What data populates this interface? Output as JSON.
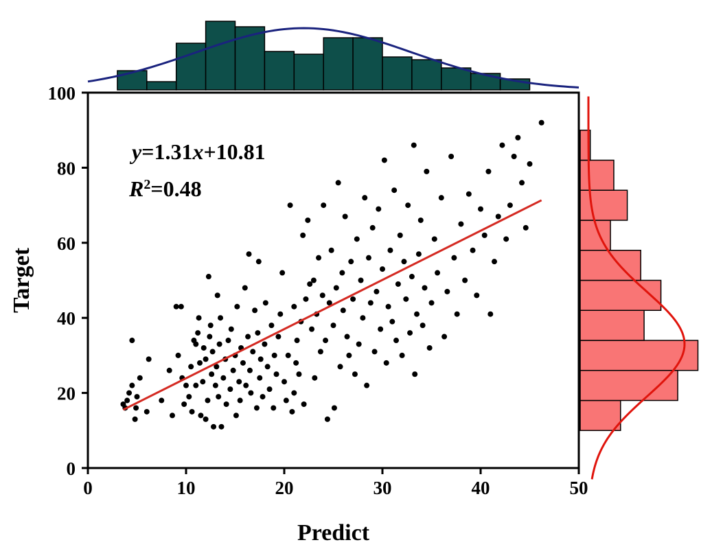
{
  "chart_data": {
    "type": "scatter",
    "xlabel": "Predict",
    "ylabel": "Target",
    "xlim": [
      0,
      50
    ],
    "ylim": [
      0,
      100
    ],
    "x_ticks": [
      "0",
      "10",
      "20",
      "30",
      "40",
      "50"
    ],
    "y_ticks": [
      "0",
      "20",
      "40",
      "60",
      "80",
      "100"
    ],
    "grid": false,
    "annotations": {
      "equation": {
        "prefix": "y",
        "eq": "=1.31",
        "var": "x",
        "suffix": "+10.81"
      },
      "r2": {
        "base": "R",
        "sup": "2",
        "value": "=0.48"
      }
    },
    "fit_line": {
      "slope": 1.31,
      "intercept": 10.81,
      "x_range": [
        3.6,
        46.2
      ]
    },
    "points": [
      [
        3.6,
        17
      ],
      [
        3.8,
        16
      ],
      [
        4.0,
        18
      ],
      [
        4.2,
        20
      ],
      [
        4.5,
        22
      ],
      [
        4.5,
        34
      ],
      [
        4.8,
        13
      ],
      [
        4.9,
        16
      ],
      [
        5.0,
        19
      ],
      [
        5.3,
        24
      ],
      [
        6.0,
        15
      ],
      [
        6.2,
        29
      ],
      [
        7.5,
        18
      ],
      [
        8.3,
        26
      ],
      [
        8.6,
        14
      ],
      [
        9.0,
        43
      ],
      [
        9.2,
        30
      ],
      [
        9.5,
        43
      ],
      [
        9.6,
        24
      ],
      [
        9.8,
        17
      ],
      [
        10.0,
        22
      ],
      [
        10.3,
        19
      ],
      [
        10.5,
        27
      ],
      [
        10.6,
        15
      ],
      [
        10.8,
        34
      ],
      [
        11.0,
        33
      ],
      [
        11.0,
        22
      ],
      [
        11.2,
        36
      ],
      [
        11.3,
        40
      ],
      [
        11.4,
        28
      ],
      [
        11.5,
        14
      ],
      [
        11.7,
        23
      ],
      [
        11.8,
        32
      ],
      [
        12.0,
        29
      ],
      [
        12.0,
        13
      ],
      [
        12.2,
        18
      ],
      [
        12.3,
        51
      ],
      [
        12.4,
        35
      ],
      [
        12.5,
        38
      ],
      [
        12.6,
        25
      ],
      [
        12.7,
        31
      ],
      [
        12.8,
        11
      ],
      [
        13.0,
        22
      ],
      [
        13.1,
        27
      ],
      [
        13.2,
        46
      ],
      [
        13.3,
        19
      ],
      [
        13.4,
        33
      ],
      [
        13.5,
        40
      ],
      [
        13.6,
        11
      ],
      [
        13.8,
        24
      ],
      [
        14.0,
        29
      ],
      [
        14.1,
        17
      ],
      [
        14.3,
        34
      ],
      [
        14.5,
        21
      ],
      [
        14.6,
        37
      ],
      [
        14.8,
        26
      ],
      [
        15.0,
        30
      ],
      [
        15.1,
        14
      ],
      [
        15.2,
        43
      ],
      [
        15.4,
        23
      ],
      [
        15.5,
        18
      ],
      [
        15.6,
        32
      ],
      [
        15.8,
        28
      ],
      [
        16.0,
        48
      ],
      [
        16.1,
        22
      ],
      [
        16.3,
        35
      ],
      [
        16.4,
        57
      ],
      [
        16.5,
        26
      ],
      [
        16.6,
        20
      ],
      [
        16.8,
        31
      ],
      [
        17.0,
        42
      ],
      [
        17.2,
        16
      ],
      [
        17.3,
        36
      ],
      [
        17.4,
        55
      ],
      [
        17.5,
        24
      ],
      [
        17.6,
        29
      ],
      [
        17.8,
        19
      ],
      [
        18.0,
        33
      ],
      [
        18.1,
        44
      ],
      [
        18.3,
        27
      ],
      [
        18.5,
        21
      ],
      [
        18.7,
        38
      ],
      [
        18.9,
        16
      ],
      [
        19.0,
        30
      ],
      [
        19.2,
        25
      ],
      [
        19.4,
        35
      ],
      [
        19.6,
        41
      ],
      [
        19.8,
        52
      ],
      [
        20.0,
        23
      ],
      [
        20.2,
        18
      ],
      [
        20.4,
        30
      ],
      [
        20.6,
        70
      ],
      [
        20.8,
        15
      ],
      [
        21.0,
        20
      ],
      [
        21.0,
        43
      ],
      [
        21.2,
        28
      ],
      [
        21.3,
        34
      ],
      [
        21.5,
        25
      ],
      [
        21.7,
        39
      ],
      [
        21.9,
        62
      ],
      [
        22.0,
        17
      ],
      [
        22.2,
        45
      ],
      [
        22.4,
        66
      ],
      [
        22.6,
        49
      ],
      [
        22.8,
        37
      ],
      [
        23.0,
        50
      ],
      [
        23.1,
        24
      ],
      [
        23.3,
        41
      ],
      [
        23.5,
        56
      ],
      [
        23.7,
        31
      ],
      [
        23.9,
        46
      ],
      [
        24.0,
        70
      ],
      [
        24.2,
        34
      ],
      [
        24.4,
        13
      ],
      [
        24.6,
        44
      ],
      [
        24.8,
        58
      ],
      [
        25.0,
        38
      ],
      [
        25.1,
        16
      ],
      [
        25.3,
        48
      ],
      [
        25.5,
        76
      ],
      [
        25.7,
        27
      ],
      [
        25.9,
        52
      ],
      [
        26.0,
        42
      ],
      [
        26.2,
        67
      ],
      [
        26.4,
        35
      ],
      [
        26.6,
        30
      ],
      [
        26.8,
        55
      ],
      [
        27.0,
        45
      ],
      [
        27.2,
        25
      ],
      [
        27.4,
        61
      ],
      [
        27.6,
        33
      ],
      [
        27.8,
        50
      ],
      [
        28.0,
        40
      ],
      [
        28.2,
        72
      ],
      [
        28.4,
        22
      ],
      [
        28.6,
        56
      ],
      [
        28.8,
        44
      ],
      [
        29.0,
        64
      ],
      [
        29.2,
        31
      ],
      [
        29.4,
        47
      ],
      [
        29.6,
        69
      ],
      [
        29.8,
        37
      ],
      [
        30.0,
        53
      ],
      [
        30.2,
        82
      ],
      [
        30.4,
        28
      ],
      [
        30.6,
        43
      ],
      [
        30.8,
        58
      ],
      [
        31.0,
        39
      ],
      [
        31.2,
        74
      ],
      [
        31.4,
        34
      ],
      [
        31.6,
        49
      ],
      [
        31.8,
        62
      ],
      [
        32.0,
        30
      ],
      [
        32.2,
        55
      ],
      [
        32.4,
        45
      ],
      [
        32.6,
        70
      ],
      [
        32.8,
        36
      ],
      [
        33.0,
        51
      ],
      [
        33.2,
        86
      ],
      [
        33.3,
        25
      ],
      [
        33.5,
        41
      ],
      [
        33.7,
        57
      ],
      [
        33.9,
        66
      ],
      [
        34.1,
        38
      ],
      [
        34.3,
        48
      ],
      [
        34.5,
        79
      ],
      [
        34.8,
        32
      ],
      [
        35.0,
        44
      ],
      [
        35.3,
        61
      ],
      [
        35.6,
        52
      ],
      [
        36.0,
        72
      ],
      [
        36.3,
        35
      ],
      [
        36.6,
        47
      ],
      [
        37.0,
        83
      ],
      [
        37.3,
        56
      ],
      [
        37.6,
        41
      ],
      [
        38.0,
        65
      ],
      [
        38.4,
        50
      ],
      [
        38.8,
        73
      ],
      [
        39.2,
        58
      ],
      [
        39.6,
        46
      ],
      [
        40.0,
        69
      ],
      [
        40.4,
        62
      ],
      [
        40.8,
        79
      ],
      [
        41.0,
        41
      ],
      [
        41.4,
        55
      ],
      [
        41.8,
        67
      ],
      [
        42.2,
        86
      ],
      [
        42.6,
        61
      ],
      [
        43.0,
        70
      ],
      [
        43.4,
        83
      ],
      [
        43.8,
        88
      ],
      [
        44.2,
        76
      ],
      [
        44.6,
        64
      ],
      [
        45.0,
        81
      ],
      [
        46.2,
        92
      ]
    ],
    "top_histogram": {
      "bin_edges": [
        3,
        6,
        9,
        12,
        15,
        18,
        21,
        24,
        27,
        30,
        33,
        36,
        39,
        42,
        45
      ],
      "counts": [
        7,
        3,
        17,
        25,
        23,
        14,
        13,
        19,
        19,
        12,
        11,
        8,
        6,
        4
      ]
    },
    "right_histogram": {
      "bin_edges": [
        10,
        18,
        26,
        34,
        42,
        50,
        58,
        66,
        74,
        82,
        90
      ],
      "counts": [
        12,
        29,
        35,
        19,
        24,
        18,
        9,
        14,
        10,
        3
      ]
    },
    "colors": {
      "scatter_point": "#000000",
      "fit_line": "#d42a22",
      "top_hist_fill": "#0e4f4a",
      "top_curve": "#1a237e",
      "right_hist_fill": "#f97575",
      "right_curve": "#e0140c"
    }
  }
}
